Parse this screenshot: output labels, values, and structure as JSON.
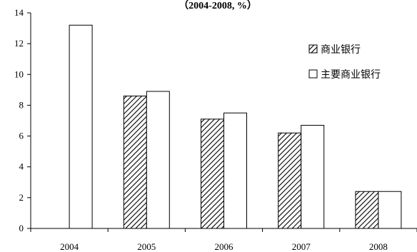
{
  "chart_data": {
    "type": "bar",
    "title": "（2004-2008, %）",
    "categories": [
      "2004",
      "2005",
      "2006",
      "2007",
      "2008"
    ],
    "series": [
      {
        "name": "商业银行",
        "pattern": "hatched",
        "values": [
          null,
          8.6,
          7.1,
          6.2,
          2.4
        ]
      },
      {
        "name": "主要商业银行",
        "pattern": "solid",
        "values": [
          13.2,
          8.9,
          7.5,
          6.7,
          2.4
        ]
      }
    ],
    "ylim": [
      0,
      14
    ],
    "yticks": [
      0,
      2,
      4,
      6,
      8,
      10,
      12,
      14
    ],
    "xlabel": "",
    "ylabel": "",
    "grid": false,
    "legend_position": "top-right",
    "colors": {
      "bar_fill": "#ffffff",
      "bar_stroke": "#000000",
      "hatch": "#000000"
    }
  }
}
